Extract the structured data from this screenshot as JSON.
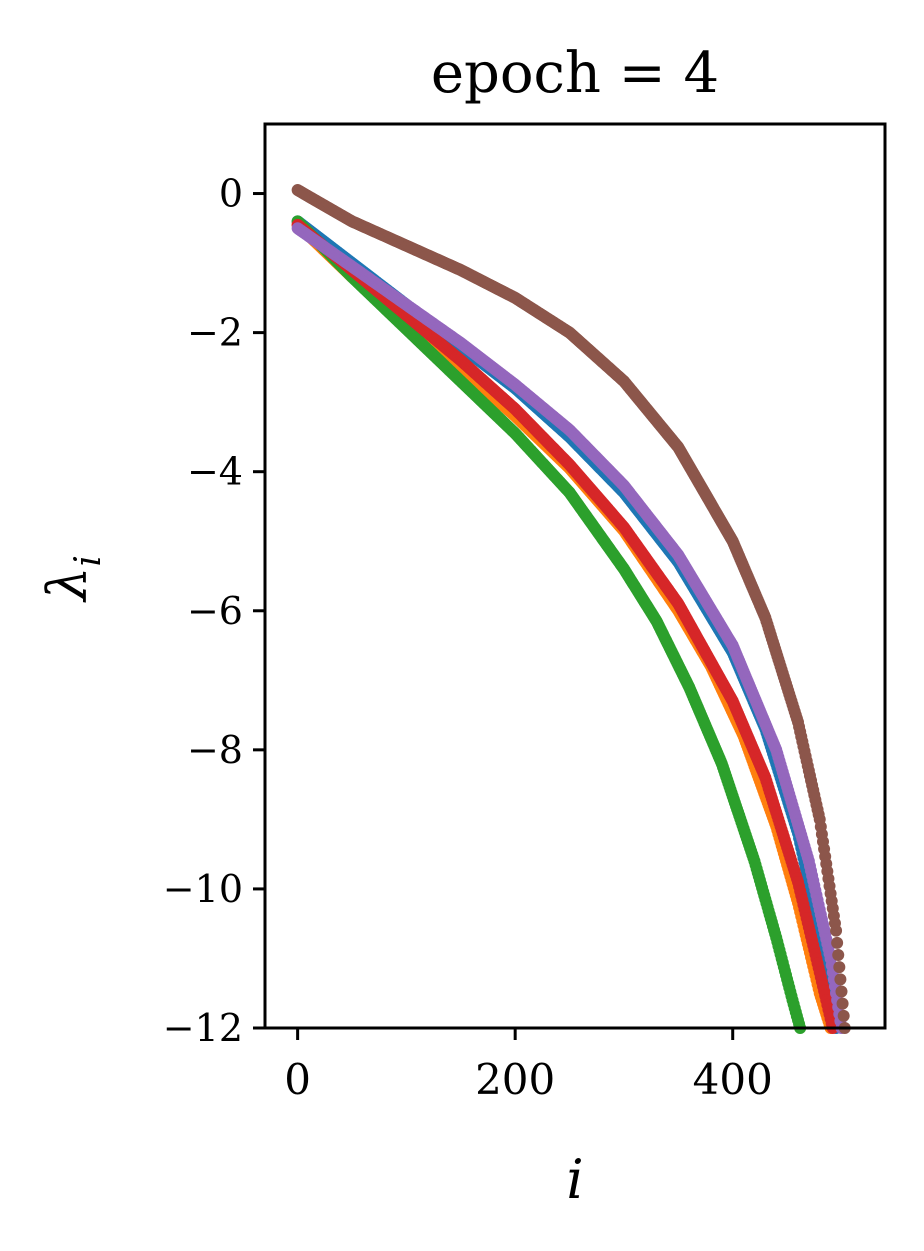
{
  "chart_data": {
    "type": "scatter",
    "title": "epoch = 4",
    "xlabel": "i",
    "ylabel": "λ",
    "ylabel_subscript": "i",
    "xlim": [
      -30,
      540
    ],
    "ylim": [
      -12,
      1
    ],
    "xticks": [
      0,
      200,
      400
    ],
    "xtick_labels": [
      "0",
      "200",
      "400"
    ],
    "yticks": [
      0,
      -2,
      -4,
      -6,
      -8,
      -10,
      -12
    ],
    "ytick_labels": [
      "0",
      "−2",
      "−4",
      "−6",
      "−8",
      "−10",
      "−12"
    ],
    "grid": false,
    "legend": "none",
    "series": [
      {
        "color": "#1f77b4",
        "x": [
          0,
          50,
          100,
          150,
          200,
          250,
          300,
          350,
          400,
          430,
          460,
          480,
          495
        ],
        "y": [
          -0.4,
          -1.0,
          -1.6,
          -2.2,
          -2.8,
          -3.5,
          -4.3,
          -5.3,
          -6.6,
          -7.7,
          -9.2,
          -10.6,
          -12.0
        ]
      },
      {
        "color": "#ff7f0e",
        "x": [
          0,
          50,
          100,
          150,
          200,
          250,
          300,
          350,
          380,
          410,
          440,
          460,
          480,
          490
        ],
        "y": [
          -0.45,
          -1.2,
          -1.85,
          -2.5,
          -3.2,
          -3.95,
          -4.85,
          -6.0,
          -6.8,
          -7.8,
          -9.1,
          -10.2,
          -11.5,
          -12.0
        ]
      },
      {
        "color": "#2ca02c",
        "x": [
          0,
          50,
          100,
          150,
          200,
          250,
          300,
          330,
          360,
          390,
          420,
          440,
          455,
          462
        ],
        "y": [
          -0.4,
          -1.2,
          -1.95,
          -2.7,
          -3.45,
          -4.3,
          -5.4,
          -6.15,
          -7.1,
          -8.2,
          -9.6,
          -10.7,
          -11.6,
          -12.0
        ]
      },
      {
        "color": "#d62728",
        "x": [
          0,
          50,
          100,
          150,
          200,
          250,
          300,
          350,
          400,
          430,
          460,
          480,
          492
        ],
        "y": [
          -0.45,
          -1.1,
          -1.75,
          -2.4,
          -3.1,
          -3.9,
          -4.8,
          -5.9,
          -7.3,
          -8.4,
          -9.9,
          -11.2,
          -12.0
        ]
      },
      {
        "color": "#9467bd",
        "x": [
          0,
          50,
          100,
          150,
          200,
          250,
          300,
          350,
          400,
          440,
          470,
          490,
          500
        ],
        "y": [
          -0.5,
          -1.05,
          -1.6,
          -2.15,
          -2.75,
          -3.4,
          -4.2,
          -5.2,
          -6.5,
          -8.0,
          -9.6,
          -11.0,
          -12.0
        ]
      },
      {
        "color": "#8c564b",
        "x": [
          0,
          50,
          100,
          150,
          200,
          250,
          300,
          350,
          400,
          430,
          460,
          480,
          495,
          503
        ],
        "y": [
          0.05,
          -0.4,
          -0.75,
          -1.1,
          -1.5,
          -2.0,
          -2.7,
          -3.65,
          -5.0,
          -6.1,
          -7.6,
          -9.0,
          -10.6,
          -12.0
        ]
      }
    ]
  }
}
